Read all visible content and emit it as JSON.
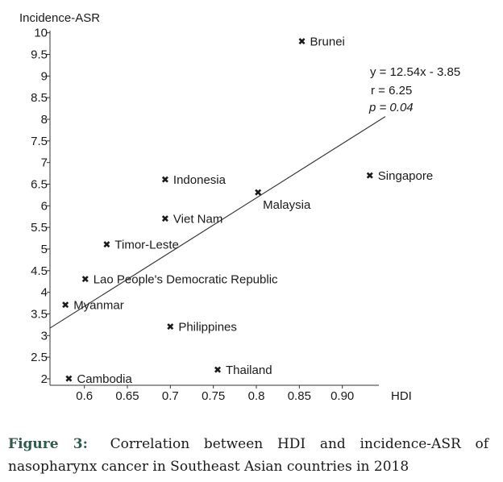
{
  "chart_data": {
    "type": "scatter",
    "ylabel": "Incidence-ASR",
    "xlabel": "HDI",
    "xlim": [
      0.56,
      0.95
    ],
    "ylim": [
      1.85,
      10.05
    ],
    "x_ticks": [
      0.6,
      0.65,
      0.7,
      0.75,
      0.8,
      0.85,
      0.9
    ],
    "x_tick_labels": [
      "0.6",
      "0.65",
      "0.7",
      "0.75",
      "0.8",
      "0.85",
      "0.90"
    ],
    "y_ticks": [
      2,
      2.5,
      3,
      3.5,
      4,
      4.5,
      5,
      5.5,
      6,
      6.5,
      7,
      7.5,
      8,
      8.5,
      9,
      9.5,
      10
    ],
    "grid": false,
    "marker": "✖",
    "points": [
      {
        "label": "Brunei",
        "x": 0.853,
        "y": 9.8
      },
      {
        "label": "Singapore",
        "x": 0.932,
        "y": 6.7
      },
      {
        "label": "Indonesia",
        "x": 0.694,
        "y": 6.6
      },
      {
        "label": "Malaysia",
        "x": 0.802,
        "y": 6.3
      },
      {
        "label": "Viet Nam",
        "x": 0.694,
        "y": 5.7
      },
      {
        "label": "Timor-Leste",
        "x": 0.626,
        "y": 5.1
      },
      {
        "label": "Lao People's Democratic Republic",
        "x": 0.601,
        "y": 4.3
      },
      {
        "label": "Myanmar",
        "x": 0.578,
        "y": 3.7
      },
      {
        "label": "Philippines",
        "x": 0.7,
        "y": 3.2
      },
      {
        "label": "Thailand",
        "x": 0.755,
        "y": 2.2
      },
      {
        "label": "Cambodia",
        "x": 0.582,
        "y": 2.0
      }
    ],
    "trendline": {
      "slope": 12.54,
      "intercept": -3.85,
      "x_start": 0.56,
      "x_end": 0.95
    },
    "annotations": {
      "equation": "y = 12.54x - 3.85",
      "r": "r = 6.25",
      "p": "p = 0.04"
    }
  },
  "caption": {
    "label": "Figure 3:",
    "text": "Correlation between HDI and incidence-ASR of nasopharynx cancer in Southeast Asian countries in 2018"
  }
}
